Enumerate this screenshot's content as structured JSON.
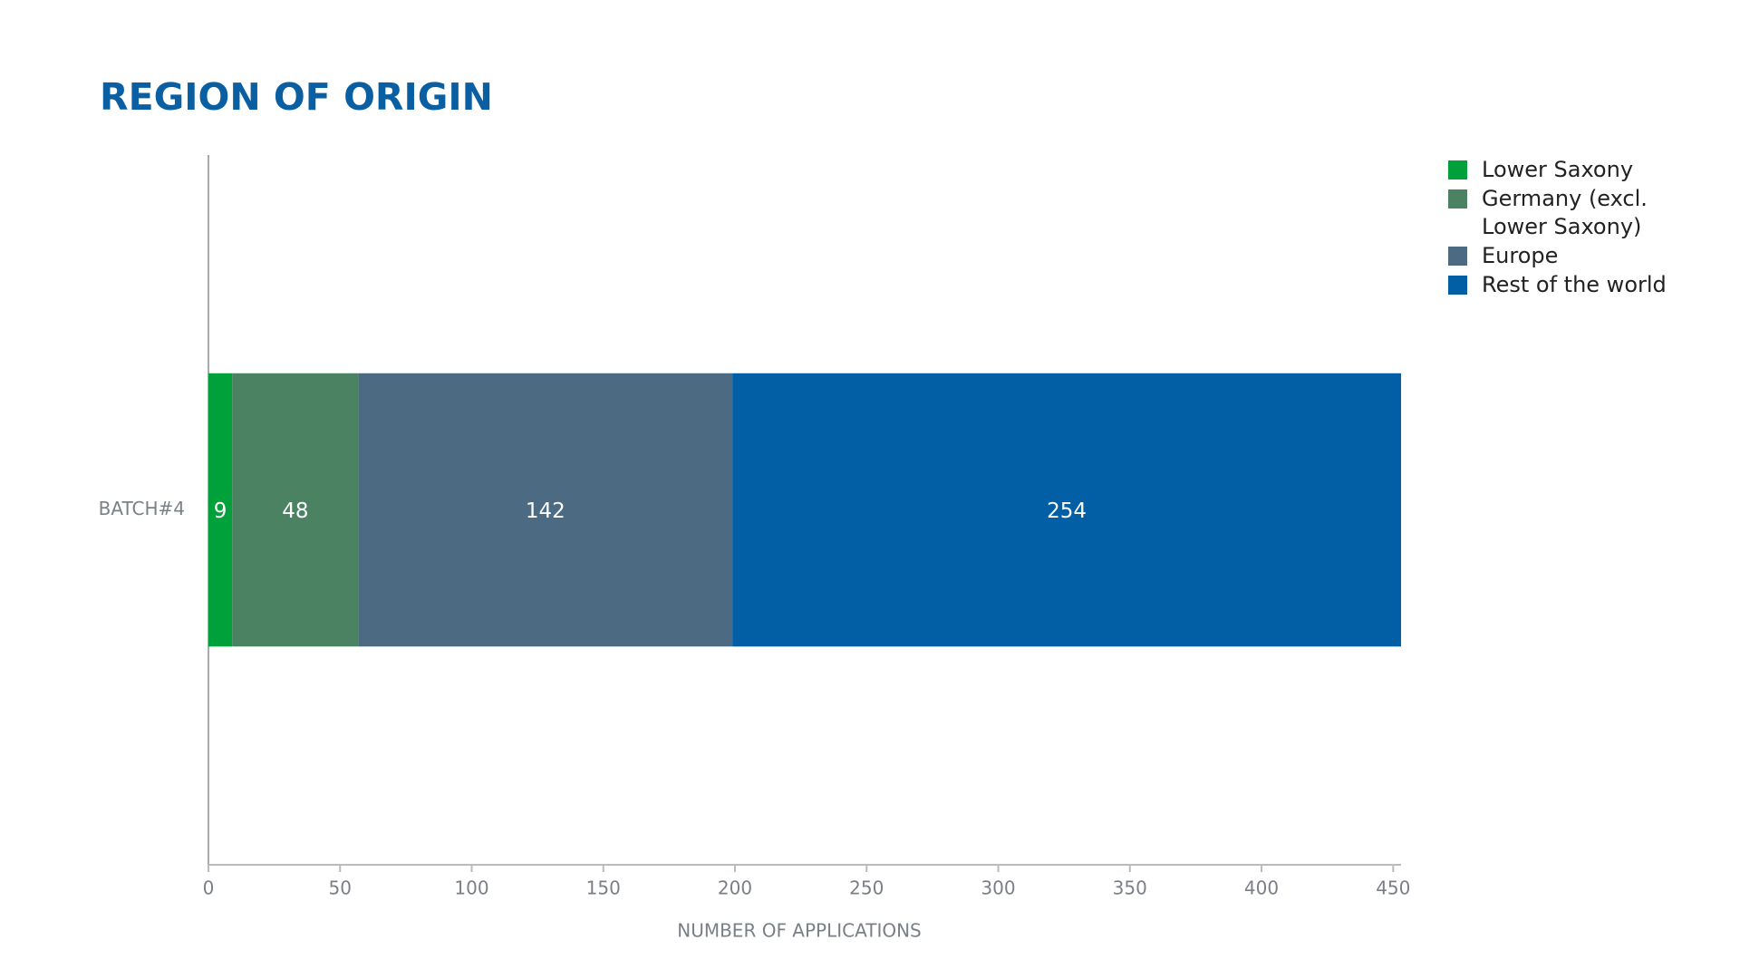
{
  "chart_data": {
    "type": "bar",
    "orientation": "horizontal",
    "stacked": true,
    "title": "REGION OF ORIGIN",
    "categories": [
      "BATCH#4"
    ],
    "series": [
      {
        "name": "Lower Saxony",
        "color": "#00a13a",
        "values": [
          9
        ]
      },
      {
        "name": "Germany (excl. Lower Saxony)",
        "color": "#4a8262",
        "values": [
          48
        ]
      },
      {
        "name": "Europe",
        "color": "#4c6b82",
        "values": [
          142
        ]
      },
      {
        "name": "Rest of the world",
        "color": "#025fa5",
        "values": [
          254
        ]
      }
    ],
    "xlabel": "NUMBER OF APPLICATIONS",
    "xlim": [
      0,
      453
    ],
    "xticks": [
      0,
      50,
      100,
      150,
      200,
      250,
      300,
      350,
      400,
      450
    ],
    "legend": "upper right"
  }
}
